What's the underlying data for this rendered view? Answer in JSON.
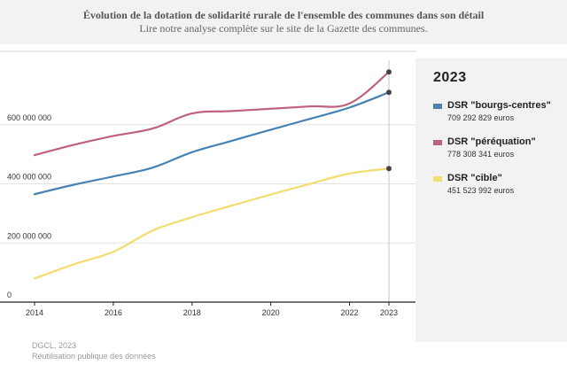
{
  "header": {
    "title": "Évolution de la dotation de solidarité rurale de l'ensemble des communes dans son détail",
    "subtitle": "Lire notre analyse complète sur le site de la Gazette des communes."
  },
  "legend": {
    "year": "2023",
    "items": [
      {
        "name": "DSR \"bourgs-centres\"",
        "value": "709 292 829 euros",
        "color": "#4682b4"
      },
      {
        "name": "DSR \"péréquation\"",
        "value": "778 308 341 euros",
        "color": "#c0607f"
      },
      {
        "name": "DSR \"cible\"",
        "value": "451 523 992 euros",
        "color": "#f5dc6e"
      }
    ]
  },
  "footer": {
    "source": "DGCL, 2023",
    "license": "Réutilisation publique des données"
  },
  "chart_data": {
    "type": "line",
    "title": "Évolution de la dotation de solidarité rurale de l'ensemble des communes dans son détail",
    "x": [
      2014,
      2015,
      2016,
      2017,
      2018,
      2019,
      2020,
      2021,
      2022,
      2023
    ],
    "xticks": [
      2014,
      2016,
      2018,
      2020,
      2022,
      2023
    ],
    "xlim": [
      2014,
      2023
    ],
    "ylim": [
      0,
      800000000
    ],
    "yticks": [
      {
        "value": 0,
        "label": "0"
      },
      {
        "value": 200000000,
        "label": "200 000 000"
      },
      {
        "value": 400000000,
        "label": "400 000 000"
      },
      {
        "value": 600000000,
        "label": "600 000 000"
      }
    ],
    "highlight_x": 2023,
    "series": [
      {
        "name": "DSR \"bourgs-centres\"",
        "color": "#4682b4",
        "values": [
          365000000,
          397000000,
          425000000,
          455000000,
          507000000,
          545000000,
          583000000,
          620000000,
          658000000,
          709292829
        ]
      },
      {
        "name": "DSR \"péréquation\"",
        "color": "#c0607f",
        "values": [
          497000000,
          532000000,
          562000000,
          587000000,
          638000000,
          646000000,
          654000000,
          662000000,
          672000000,
          778308341
        ]
      },
      {
        "name": "DSR \"cible\"",
        "color": "#f5dc6e",
        "values": [
          80000000,
          128000000,
          170000000,
          242000000,
          287000000,
          326000000,
          364000000,
          400000000,
          435000000,
          451523992
        ]
      }
    ]
  }
}
